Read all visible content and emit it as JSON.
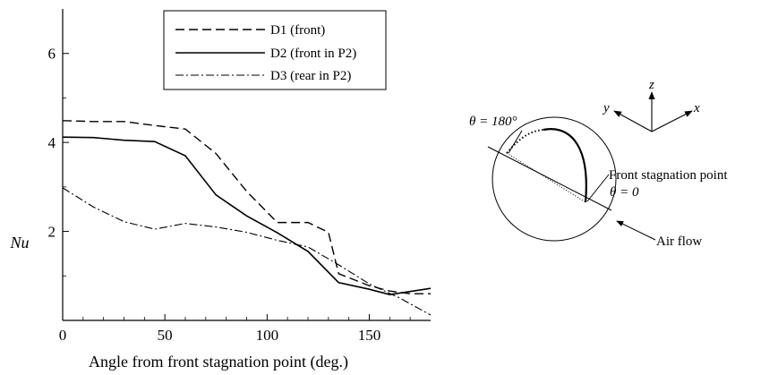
{
  "chart_data": {
    "type": "line",
    "title": "",
    "xlabel": "Angle from front stagnation point (deg.)",
    "ylabel": "Nu",
    "xlim": [
      0,
      180
    ],
    "ylim": [
      0,
      7
    ],
    "xticks": [
      "0",
      "50",
      "100",
      "150"
    ],
    "xtick_values": [
      0,
      50,
      100,
      150
    ],
    "yticks": [
      "2",
      "4",
      "6"
    ],
    "ytick_values": [
      2,
      4,
      6
    ],
    "grid": false,
    "legend_position": "top-right",
    "series": [
      {
        "name": "D1 (front)",
        "style": "dashed",
        "x": [
          0,
          15,
          30,
          45,
          60,
          75,
          90,
          105,
          120,
          130,
          135,
          150,
          160,
          170,
          180
        ],
        "y": [
          4.49,
          4.47,
          4.47,
          4.38,
          4.3,
          3.75,
          2.9,
          2.2,
          2.2,
          1.98,
          1.05,
          0.78,
          0.66,
          0.6,
          0.6
        ]
      },
      {
        "name": "D2 (front in P2)",
        "style": "solid",
        "x": [
          0,
          15,
          30,
          45,
          60,
          75,
          90,
          105,
          120,
          135,
          150,
          160,
          170,
          180
        ],
        "y": [
          4.12,
          4.11,
          4.05,
          4.02,
          3.7,
          2.82,
          2.35,
          1.97,
          1.55,
          0.85,
          0.7,
          0.58,
          0.65,
          0.72
        ]
      },
      {
        "name": "D3 (rear in P2)",
        "style": "dashdot",
        "x": [
          0,
          15,
          30,
          45,
          60,
          75,
          90,
          105,
          120,
          135,
          150,
          165,
          180
        ],
        "y": [
          2.98,
          2.55,
          2.22,
          2.05,
          2.18,
          2.1,
          1.98,
          1.8,
          1.65,
          1.25,
          0.82,
          0.5,
          0.12
        ]
      }
    ]
  },
  "diagram": {
    "theta_180_label": "θ = 180°",
    "front_stagnation_label": "Front stagnation point",
    "theta_0_label": "θ = 0",
    "air_flow_label": "Air flow",
    "axis_x_label": "x",
    "axis_y_label": "y",
    "axis_z_label": "z"
  }
}
